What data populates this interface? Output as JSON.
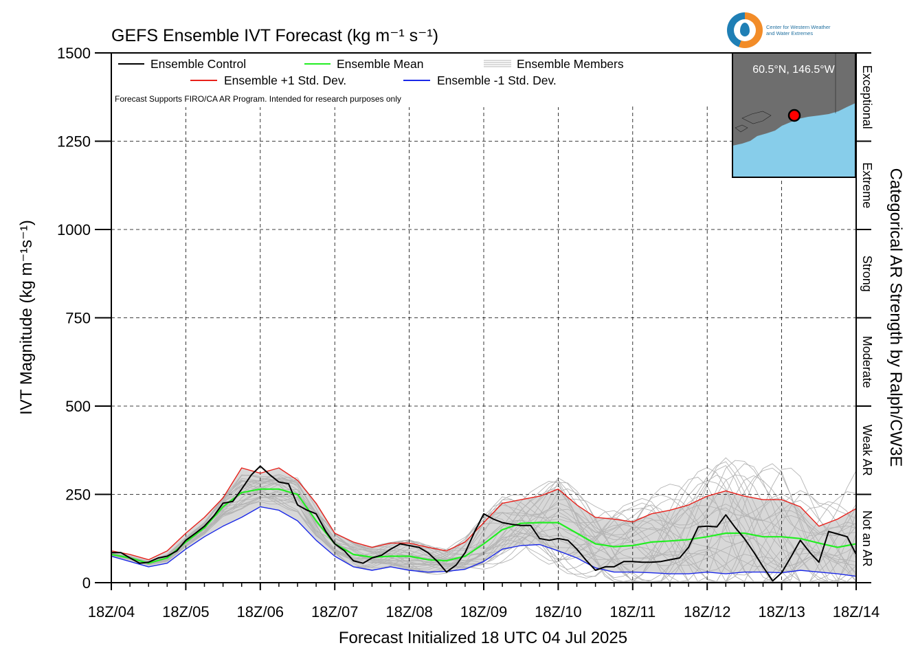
{
  "chart_data": {
    "type": "line",
    "title": "GEFS Ensemble IVT Forecast (kg m⁻¹ s⁻¹)",
    "xlabel": "Forecast Initialized 18 UTC 04 Jul 2025",
    "ylabel": "IVT Magnitude (kg m⁻¹s⁻¹)",
    "right_label": "Categorical AR Strength by Ralph/CW3E",
    "note": "Forecast Supports FIRO/CA AR Program. Intended for research purposes only",
    "x_units": "forecast day since 18Z/04",
    "xlim": [
      0,
      10
    ],
    "ylim": [
      0,
      1500
    ],
    "x_ticks": [
      "18Z/04",
      "18Z/05",
      "18Z/06",
      "18Z/07",
      "18Z/08",
      "18Z/09",
      "18Z/10",
      "18Z/11",
      "18Z/12",
      "18Z/13",
      "18Z/14"
    ],
    "y_ticks": [
      0,
      250,
      500,
      750,
      1000,
      1250,
      1500
    ],
    "categories_ar": [
      {
        "label": "Not an AR",
        "range": [
          0,
          250
        ]
      },
      {
        "label": "Weak AR",
        "range": [
          250,
          500
        ]
      },
      {
        "label": "Moderate",
        "range": [
          500,
          750
        ]
      },
      {
        "label": "Strong",
        "range": [
          750,
          1000
        ]
      },
      {
        "label": "Extreme",
        "range": [
          1000,
          1250
        ]
      },
      {
        "label": "Exceptional",
        "range": [
          1250,
          1500
        ]
      }
    ],
    "legend": {
      "control": "Ensemble Control",
      "mean": "Ensemble Mean",
      "members": "Ensemble Members",
      "plus": "Ensemble +1 Std. Dev.",
      "minus": "Ensemble -1 Std. Dev."
    },
    "inset": {
      "location": "60.5°N, 146.5°W"
    },
    "colors": {
      "control": "#000000",
      "mean": "#22ee22",
      "plus": "#e8201a",
      "minus": "#1a28e8",
      "members": "#b4b4b4",
      "shade": "#d8d8d8",
      "land": "#6e6e6e",
      "water": "#87cdea",
      "marker": "#ff0000"
    },
    "series": [
      {
        "name": "Ensemble Control",
        "values": [
          [
            0,
            85
          ],
          [
            0.13,
            85
          ],
          [
            0.25,
            70
          ],
          [
            0.38,
            55
          ],
          [
            0.5,
            58
          ],
          [
            0.63,
            70
          ],
          [
            0.75,
            75
          ],
          [
            0.88,
            90
          ],
          [
            1,
            120
          ],
          [
            1.13,
            140
          ],
          [
            1.25,
            160
          ],
          [
            1.38,
            190
          ],
          [
            1.5,
            225
          ],
          [
            1.63,
            230
          ],
          [
            1.75,
            265
          ],
          [
            1.88,
            305
          ],
          [
            2,
            330
          ],
          [
            2.13,
            305
          ],
          [
            2.25,
            285
          ],
          [
            2.38,
            280
          ],
          [
            2.5,
            220
          ],
          [
            2.63,
            205
          ],
          [
            2.75,
            195
          ],
          [
            2.88,
            145
          ],
          [
            3,
            110
          ],
          [
            3.13,
            90
          ],
          [
            3.25,
            62
          ],
          [
            3.38,
            55
          ],
          [
            3.5,
            70
          ],
          [
            3.63,
            78
          ],
          [
            3.75,
            95
          ],
          [
            3.88,
            110
          ],
          [
            4,
            105
          ],
          [
            4.13,
            100
          ],
          [
            4.25,
            85
          ],
          [
            4.38,
            60
          ],
          [
            4.5,
            30
          ],
          [
            4.63,
            50
          ],
          [
            4.75,
            85
          ],
          [
            4.88,
            145
          ],
          [
            5,
            195
          ],
          [
            5.13,
            180
          ],
          [
            5.25,
            170
          ],
          [
            5.38,
            165
          ],
          [
            5.5,
            162
          ],
          [
            5.63,
            162
          ],
          [
            5.75,
            125
          ],
          [
            5.88,
            120
          ],
          [
            6,
            125
          ],
          [
            6.13,
            120
          ],
          [
            6.25,
            95
          ],
          [
            6.38,
            62
          ],
          [
            6.5,
            35
          ],
          [
            6.63,
            45
          ],
          [
            6.75,
            45
          ],
          [
            6.88,
            60
          ],
          [
            7,
            60
          ],
          [
            7.13,
            58
          ],
          [
            7.25,
            58
          ],
          [
            7.38,
            60
          ],
          [
            7.5,
            65
          ],
          [
            7.63,
            70
          ],
          [
            7.75,
            100
          ],
          [
            7.88,
            158
          ],
          [
            8,
            160
          ],
          [
            8.13,
            158
          ],
          [
            8.25,
            192
          ],
          [
            8.38,
            155
          ],
          [
            8.5,
            125
          ],
          [
            8.63,
            85
          ],
          [
            8.75,
            45
          ],
          [
            8.88,
            5
          ],
          [
            9,
            28
          ],
          [
            9.13,
            75
          ],
          [
            9.25,
            120
          ],
          [
            9.38,
            85
          ],
          [
            9.5,
            58
          ],
          [
            9.63,
            145
          ],
          [
            9.75,
            138
          ],
          [
            9.88,
            130
          ],
          [
            10,
            80
          ]
        ]
      },
      {
        "name": "Ensemble Mean",
        "values": [
          [
            0,
            80
          ],
          [
            0.25,
            70
          ],
          [
            0.5,
            55
          ],
          [
            0.75,
            70
          ],
          [
            1,
            115
          ],
          [
            1.25,
            155
          ],
          [
            1.5,
            215
          ],
          [
            1.75,
            255
          ],
          [
            2,
            265
          ],
          [
            2.25,
            265
          ],
          [
            2.5,
            250
          ],
          [
            2.75,
            175
          ],
          [
            3,
            110
          ],
          [
            3.25,
            80
          ],
          [
            3.5,
            72
          ],
          [
            3.75,
            75
          ],
          [
            4,
            75
          ],
          [
            4.25,
            65
          ],
          [
            4.5,
            62
          ],
          [
            4.75,
            75
          ],
          [
            5,
            110
          ],
          [
            5.25,
            150
          ],
          [
            5.5,
            168
          ],
          [
            5.75,
            170
          ],
          [
            6,
            170
          ],
          [
            6.25,
            140
          ],
          [
            6.5,
            110
          ],
          [
            6.75,
            102
          ],
          [
            7,
            105
          ],
          [
            7.25,
            115
          ],
          [
            7.5,
            118
          ],
          [
            7.75,
            122
          ],
          [
            8,
            130
          ],
          [
            8.25,
            140
          ],
          [
            8.5,
            140
          ],
          [
            8.75,
            130
          ],
          [
            9,
            130
          ],
          [
            9.25,
            125
          ],
          [
            9.5,
            112
          ],
          [
            9.75,
            100
          ],
          [
            10,
            110
          ]
        ]
      },
      {
        "name": "Ensemble +1 Std. Dev.",
        "values": [
          [
            0,
            90
          ],
          [
            0.25,
            80
          ],
          [
            0.5,
            65
          ],
          [
            0.75,
            90
          ],
          [
            1,
            140
          ],
          [
            1.25,
            185
          ],
          [
            1.5,
            240
          ],
          [
            1.75,
            325
          ],
          [
            2,
            310
          ],
          [
            2.25,
            325
          ],
          [
            2.5,
            290
          ],
          [
            2.75,
            225
          ],
          [
            3,
            140
          ],
          [
            3.25,
            115
          ],
          [
            3.5,
            100
          ],
          [
            3.75,
            112
          ],
          [
            4,
            112
          ],
          [
            4.25,
            100
          ],
          [
            4.5,
            90
          ],
          [
            4.75,
            115
          ],
          [
            5,
            170
          ],
          [
            5.25,
            225
          ],
          [
            5.5,
            235
          ],
          [
            5.75,
            245
          ],
          [
            6,
            265
          ],
          [
            6.25,
            220
          ],
          [
            6.5,
            185
          ],
          [
            6.75,
            180
          ],
          [
            7,
            172
          ],
          [
            7.25,
            195
          ],
          [
            7.5,
            205
          ],
          [
            7.75,
            220
          ],
          [
            8,
            245
          ],
          [
            8.25,
            260
          ],
          [
            8.5,
            245
          ],
          [
            8.75,
            235
          ],
          [
            9,
            235
          ],
          [
            9.25,
            215
          ],
          [
            9.5,
            160
          ],
          [
            9.75,
            180
          ],
          [
            10,
            210
          ]
        ]
      },
      {
        "name": "Ensemble -1 Std. Dev.",
        "values": [
          [
            0,
            75
          ],
          [
            0.25,
            60
          ],
          [
            0.5,
            45
          ],
          [
            0.75,
            55
          ],
          [
            1,
            95
          ],
          [
            1.25,
            130
          ],
          [
            1.5,
            160
          ],
          [
            1.75,
            185
          ],
          [
            2,
            215
          ],
          [
            2.25,
            205
          ],
          [
            2.5,
            175
          ],
          [
            2.75,
            120
          ],
          [
            3,
            75
          ],
          [
            3.25,
            45
          ],
          [
            3.5,
            35
          ],
          [
            3.75,
            45
          ],
          [
            4,
            35
          ],
          [
            4.25,
            30
          ],
          [
            4.5,
            32
          ],
          [
            4.75,
            38
          ],
          [
            5,
            60
          ],
          [
            5.25,
            95
          ],
          [
            5.5,
            105
          ],
          [
            5.75,
            108
          ],
          [
            6,
            90
          ],
          [
            6.25,
            70
          ],
          [
            6.5,
            42
          ],
          [
            6.75,
            30
          ],
          [
            7,
            30
          ],
          [
            7.25,
            28
          ],
          [
            7.5,
            25
          ],
          [
            7.75,
            25
          ],
          [
            8,
            30
          ],
          [
            8.25,
            25
          ],
          [
            8.5,
            30
          ],
          [
            8.75,
            30
          ],
          [
            9,
            28
          ],
          [
            9.25,
            35
          ],
          [
            9.5,
            30
          ],
          [
            9.75,
            25
          ],
          [
            10,
            18
          ]
        ]
      }
    ]
  }
}
